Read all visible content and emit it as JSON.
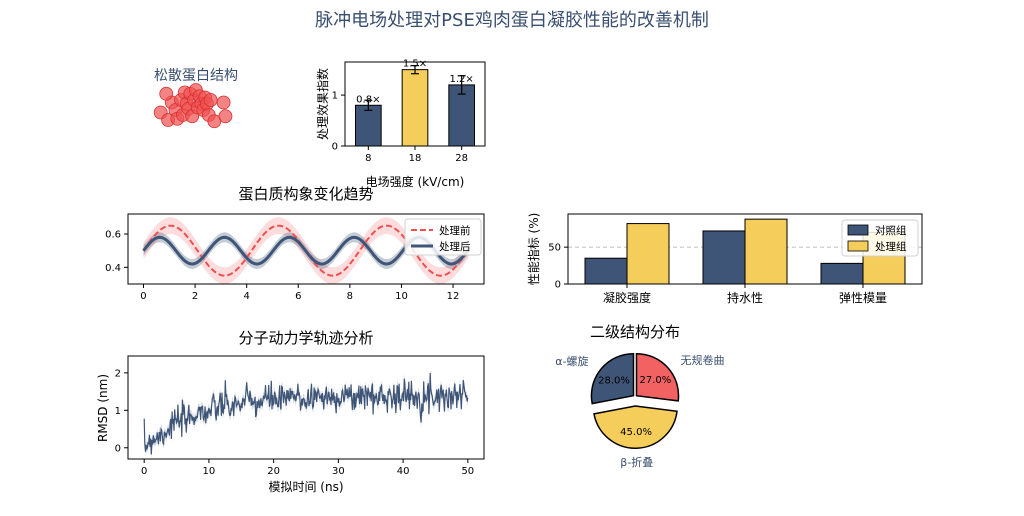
{
  "figure_title": "脉冲电场处理对PSE鸡肉蛋白凝胶性能的改善机制",
  "colors": {
    "navy": "#3e5577",
    "yellow": "#f5cd5a",
    "red": "#f05050",
    "grey": "#9aa6b6"
  },
  "chart_data": [
    {
      "id": "scatter",
      "type": "scatter",
      "title": "松散蛋白结构",
      "points": [
        [
          -0.9,
          -0.3
        ],
        [
          -0.7,
          -0.6
        ],
        [
          -0.6,
          0.1
        ],
        [
          -0.5,
          -0.2
        ],
        [
          -0.45,
          -0.55
        ],
        [
          -0.35,
          0.2
        ],
        [
          -0.3,
          -0.4
        ],
        [
          -0.25,
          0.5
        ],
        [
          -0.2,
          0.05
        ],
        [
          -0.15,
          -0.15
        ],
        [
          -0.1,
          0.45
        ],
        [
          -0.05,
          -0.45
        ],
        [
          0.0,
          0.2
        ],
        [
          0.05,
          0.6
        ],
        [
          0.1,
          -0.1
        ],
        [
          0.15,
          0.35
        ],
        [
          0.2,
          0.05
        ],
        [
          0.25,
          -0.2
        ],
        [
          0.3,
          0.3
        ],
        [
          0.35,
          0.05
        ],
        [
          0.4,
          -0.4
        ],
        [
          0.45,
          0.2
        ],
        [
          0.55,
          -0.65
        ],
        [
          0.8,
          0.1
        ],
        [
          0.85,
          -0.45
        ],
        [
          -0.75,
          0.45
        ]
      ]
    },
    {
      "id": "bar-efficiency",
      "type": "bar",
      "categories": [
        "8",
        "18",
        "28"
      ],
      "values": [
        0.8,
        1.5,
        1.2
      ],
      "errors": [
        0.1,
        0.08,
        0.18
      ],
      "value_labels": [
        "0.8×",
        "1.5×",
        "1.2×"
      ],
      "xlabel": "电场强度 (kV/cm)",
      "ylabel": "处理效果指数",
      "ylim": [
        0,
        1.65
      ],
      "yticks": [
        "0",
        "1"
      ],
      "bar_colors": [
        "#3e5577",
        "#f5cd5a",
        "#3e5577"
      ]
    },
    {
      "id": "line-conformation",
      "type": "line",
      "title": "蛋白质构象变化趋势",
      "xlim": [
        -0.6,
        13.2
      ],
      "ylim": [
        0.3,
        0.72
      ],
      "xticks": [
        "0",
        "2",
        "4",
        "6",
        "8",
        "10",
        "12"
      ],
      "yticks": [
        "0.4",
        "0.6"
      ],
      "series": [
        {
          "name": "处理前",
          "equation": "0.5 + 0.15*sin(1.5*x)",
          "band": 0.05,
          "style": "dashed",
          "color": "#f05050"
        },
        {
          "name": "处理后",
          "equation": "0.5 + 0.08*sin(2.5*x)",
          "band": 0.03,
          "style": "solid",
          "color": "#3e5577"
        }
      ],
      "legend": "upper right"
    },
    {
      "id": "bar-properties",
      "type": "bar",
      "categories": [
        "凝胶强度",
        "持水性",
        "弹性模量"
      ],
      "series": [
        {
          "name": "对照组",
          "values": [
            35,
            72,
            28
          ],
          "color": "#3e5577"
        },
        {
          "name": "处理组",
          "values": [
            82,
            88,
            70
          ],
          "color": "#f5cd5a"
        }
      ],
      "ylabel": "性能指标 (%)",
      "ylim": [
        0,
        95
      ],
      "yticks": [
        "0",
        "50"
      ],
      "reference_line": 50,
      "legend": "upper right"
    },
    {
      "id": "line-rmsd",
      "type": "line",
      "title": "分子动力学轨迹分析",
      "xlabel": "模拟时间 (ns)",
      "ylabel": "RMSD (nm)",
      "xlim": [
        -2.5,
        52.5
      ],
      "ylim": [
        -0.3,
        2.45
      ],
      "xticks": [
        "0",
        "10",
        "20",
        "30",
        "40",
        "50"
      ],
      "yticks": [
        "0",
        "1",
        "2"
      ],
      "series": [
        {
          "name": "RMSD",
          "equation": "1.4*(1-exp(-x/8)) + noise",
          "n_points": 500,
          "color": "#3e5577"
        }
      ]
    },
    {
      "id": "pie-secondary",
      "type": "pie",
      "title": "二级结构分布",
      "labels": [
        "无规卷曲",
        "β-折叠",
        "α-螺旋"
      ],
      "values": [
        27.0,
        45.0,
        28.0
      ],
      "pct_labels": [
        "27.0%",
        "45.0%",
        "28.0%"
      ],
      "colors": [
        "#f26262",
        "#f5cd5a",
        "#3e5577"
      ],
      "explode": "β-折叠"
    }
  ]
}
